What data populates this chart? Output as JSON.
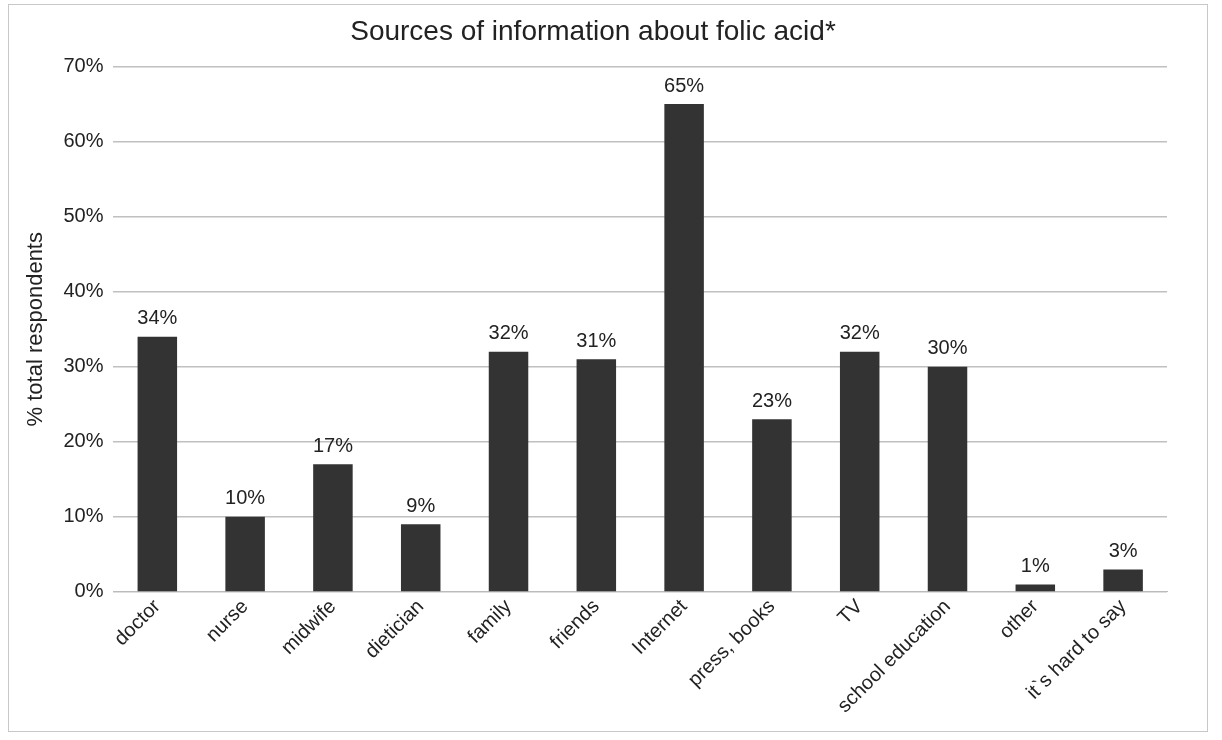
{
  "chart_data": {
    "type": "bar",
    "title": "Sources of information about folic acid*",
    "ylabel": "% total respondents",
    "categories": [
      "doctor",
      "nurse",
      "midwife",
      "dietician",
      "family",
      "friends",
      "Internet",
      "press, books",
      "TV",
      "school education",
      "other",
      "it`s hard to say"
    ],
    "values": [
      34,
      10,
      17,
      9,
      32,
      31,
      65,
      23,
      32,
      30,
      1,
      3
    ],
    "value_labels": [
      "34%",
      "10%",
      "17%",
      "9%",
      "32%",
      "31%",
      "65%",
      "23%",
      "32%",
      "30%",
      "1%",
      "3%"
    ],
    "color": "#333333",
    "ylim": [
      0,
      70
    ],
    "yticks": [
      {
        "value": 0,
        "label": "0%"
      },
      {
        "value": 10,
        "label": "10%"
      },
      {
        "value": 20,
        "label": "20%"
      },
      {
        "value": 30,
        "label": "30%"
      },
      {
        "value": 40,
        "label": "40%"
      },
      {
        "value": 50,
        "label": "50%"
      },
      {
        "value": 60,
        "label": "60%"
      },
      {
        "value": 70,
        "label": "70%"
      }
    ],
    "grid": "y",
    "legend": false
  }
}
